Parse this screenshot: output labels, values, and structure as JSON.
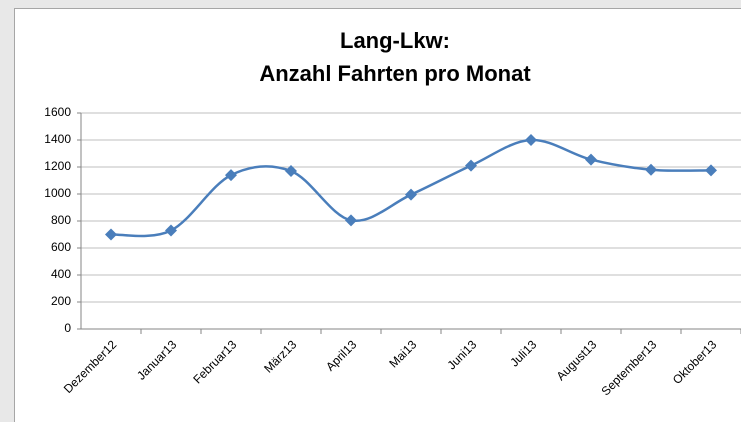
{
  "chart_data": {
    "type": "line",
    "title": [
      "Lang-Lkw:",
      "Anzahl Fahrten pro Monat"
    ],
    "categories": [
      "Dezember12",
      "Januar13",
      "Februar13",
      "März13",
      "April13",
      "Mai13",
      "Juni13",
      "Juli13",
      "August13",
      "September13",
      "Oktober13"
    ],
    "series": [
      {
        "name": "Anzahl Fahrten",
        "color": "#4a7ebb",
        "values": [
          700,
          730,
          1140,
          1170,
          805,
          995,
          1210,
          1400,
          1255,
          1180,
          1175
        ]
      }
    ],
    "ylim": [
      0,
      1600
    ],
    "yticks": [
      0,
      200,
      400,
      600,
      800,
      1000,
      1200,
      1400,
      1600
    ],
    "grid": true,
    "smooth": true,
    "marker": "diamond"
  }
}
